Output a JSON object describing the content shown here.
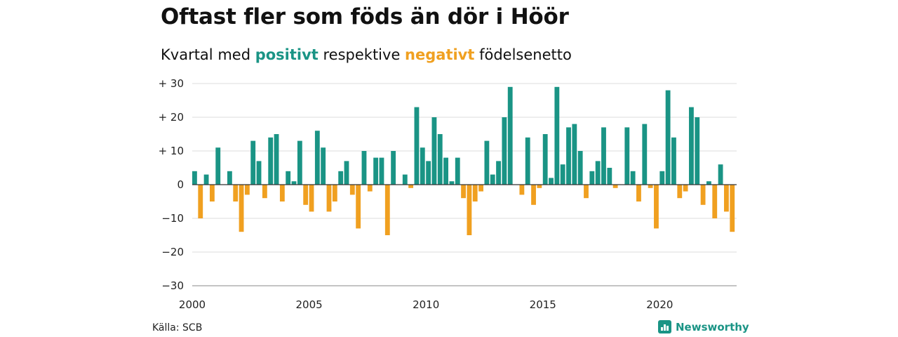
{
  "title": "Oftast fler som föds än dör i Höör",
  "subtitle": {
    "prefix": "Kvartal med ",
    "positive_word": "positivt",
    "middle": " respektive ",
    "negative_word": "negativt",
    "suffix": " födelsenetto"
  },
  "source": "Källa: SCB",
  "brand": "Newsworthy",
  "colors": {
    "positive": "#1a9485",
    "negative": "#f0a020",
    "grid": "#dddddd",
    "zero": "#333333"
  },
  "chart_data": {
    "type": "bar",
    "x_unit": "quarter",
    "x_start": "2000-Q1",
    "ylim": [
      -30,
      30
    ],
    "y_ticks": [
      {
        "value": 30,
        "label": "+ 30"
      },
      {
        "value": 20,
        "label": "+ 20"
      },
      {
        "value": 10,
        "label": "+ 10"
      },
      {
        "value": 0,
        "label": "0"
      },
      {
        "value": -10,
        "label": "−10"
      },
      {
        "value": -20,
        "label": "−20"
      },
      {
        "value": -30,
        "label": "−30"
      }
    ],
    "x_ticks": [
      "2000",
      "2005",
      "2010",
      "2015",
      "2020"
    ],
    "grid": true,
    "values": [
      4,
      -10,
      3,
      -5,
      11,
      0,
      4,
      -5,
      -14,
      -3,
      13,
      7,
      -4,
      14,
      15,
      -5,
      4,
      1,
      13,
      -6,
      -8,
      16,
      11,
      -8,
      -5,
      4,
      7,
      -3,
      -13,
      10,
      -2,
      8,
      8,
      -15,
      10,
      0,
      3,
      -1,
      23,
      11,
      7,
      20,
      15,
      8,
      1,
      8,
      -4,
      -15,
      -5,
      -2,
      13,
      3,
      7,
      20,
      29,
      0,
      -3,
      14,
      -6,
      -1,
      15,
      2,
      29,
      6,
      17,
      18,
      10,
      -4,
      4,
      7,
      17,
      5,
      -1,
      0,
      17,
      4,
      -5,
      18,
      -1,
      -13,
      4,
      28,
      14,
      -4,
      -2,
      23,
      20,
      -6,
      1,
      -10,
      6,
      -8,
      -14
    ]
  }
}
